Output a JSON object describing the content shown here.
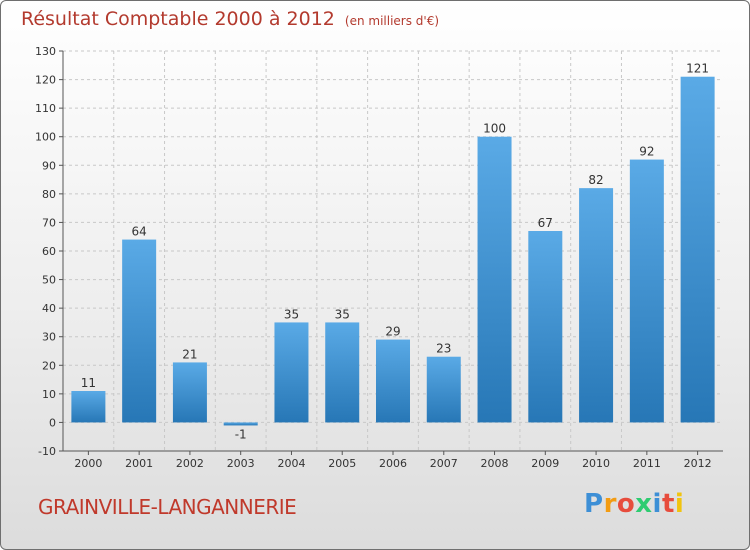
{
  "header": {
    "title": "Résultat Comptable 2000 à 2012",
    "subtitle": "(en milliers d'€)"
  },
  "footer": {
    "commune": "GRAINVILLE-LANGANNERIE",
    "logo_letters": [
      "P",
      "r",
      "o",
      "x",
      "i",
      "t",
      "i"
    ],
    "logo_colors": [
      "#3d8fd6",
      "#f39c12",
      "#e74c3c",
      "#2ecc71",
      "#3d8fd6",
      "#e74c3c",
      "#f1c40f"
    ]
  },
  "colors": {
    "title": "#b33a2e",
    "commune": "#c0392b",
    "bar_light": "#5aaae6",
    "bar_dark": "#2777b6",
    "grid": "#c8c8c8",
    "axis": "#555555"
  },
  "chart_data": {
    "type": "bar",
    "categories": [
      "2000",
      "2001",
      "2002",
      "2003",
      "2004",
      "2005",
      "2006",
      "2007",
      "2008",
      "2009",
      "2010",
      "2011",
      "2012"
    ],
    "values": [
      11,
      64,
      21,
      -1,
      35,
      35,
      29,
      23,
      100,
      67,
      82,
      92,
      121
    ],
    "value_labels": [
      "11",
      "64",
      "21",
      "-1",
      "35",
      "35",
      "29",
      "23",
      "100",
      "67",
      "82",
      "92",
      "121"
    ],
    "ylim": [
      -10,
      130
    ],
    "yticks": [
      -10,
      0,
      10,
      20,
      30,
      40,
      50,
      60,
      70,
      80,
      90,
      100,
      110,
      120,
      130
    ],
    "grid": true
  }
}
